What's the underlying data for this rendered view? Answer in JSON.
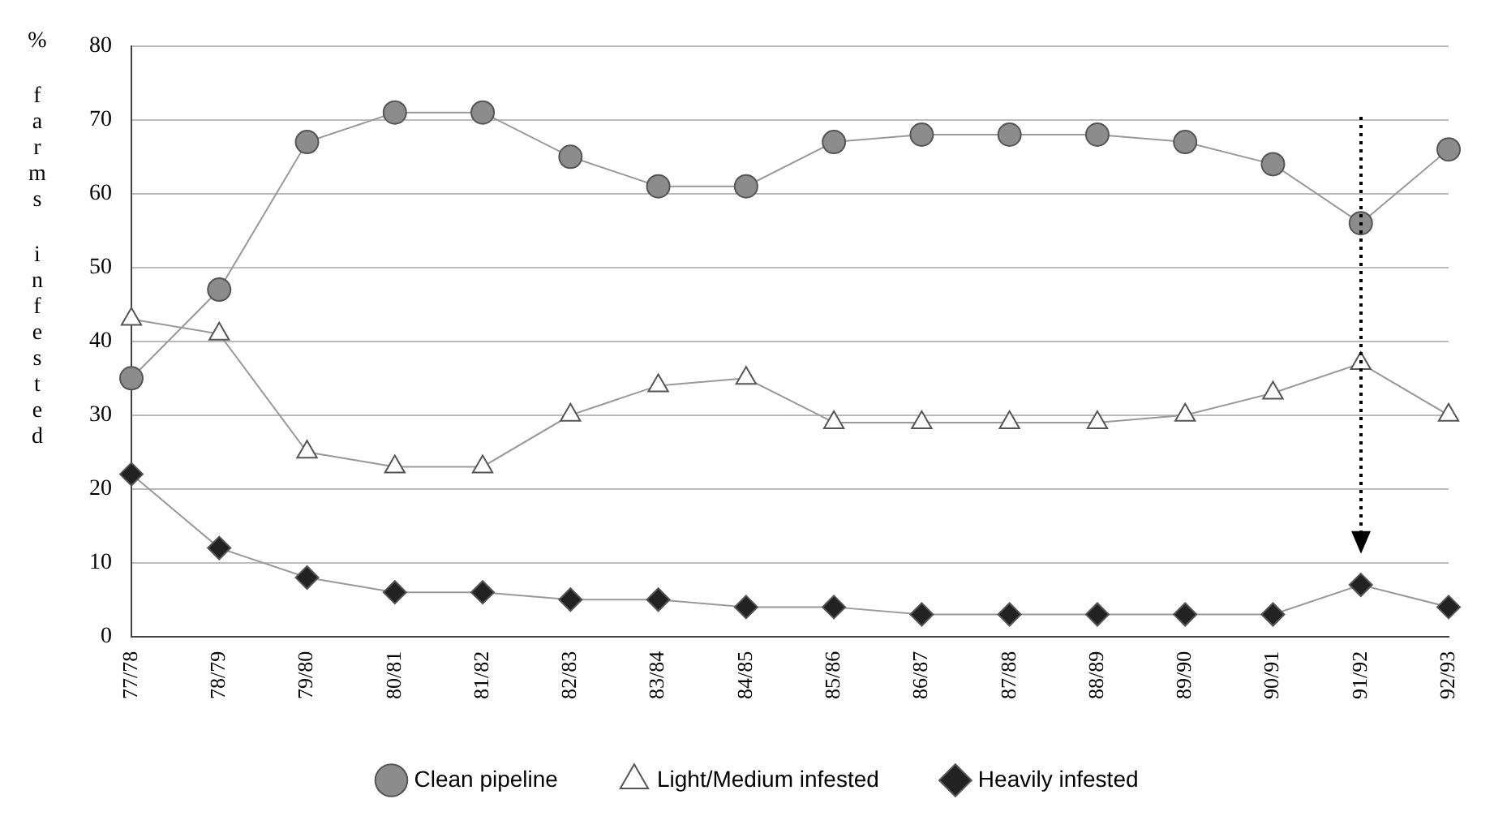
{
  "chart_data": {
    "type": "line",
    "ylabel": "% farms infested",
    "categories": [
      "77/78",
      "78/79",
      "79/80",
      "80/81",
      "81/82",
      "82/83",
      "83/84",
      "84/85",
      "85/86",
      "86/87",
      "87/88",
      "88/89",
      "89/90",
      "90/91",
      "91/92",
      "92/93"
    ],
    "series": [
      {
        "name": "Clean pipeline",
        "color": "#8c8c8c",
        "marker": "circle",
        "values": [
          35,
          47,
          67,
          71,
          71,
          65,
          61,
          61,
          67,
          68,
          68,
          68,
          67,
          64,
          56,
          66
        ]
      },
      {
        "name": "Light/Medium infested",
        "color": "#ffffff",
        "marker": "triangle",
        "values": [
          43,
          41,
          25,
          23,
          23,
          30,
          34,
          35,
          29,
          29,
          29,
          29,
          30,
          33,
          37,
          30
        ]
      },
      {
        "name": "Heavily infested",
        "color": "#222222",
        "marker": "diamond",
        "values": [
          22,
          12,
          8,
          6,
          6,
          5,
          5,
          4,
          4,
          3,
          3,
          3,
          3,
          3,
          7,
          4
        ]
      }
    ],
    "ylim": [
      0,
      80
    ],
    "yticks": [
      0,
      10,
      20,
      30,
      40,
      50,
      60,
      70,
      80
    ],
    "grid": "y",
    "legend": "bottom"
  }
}
